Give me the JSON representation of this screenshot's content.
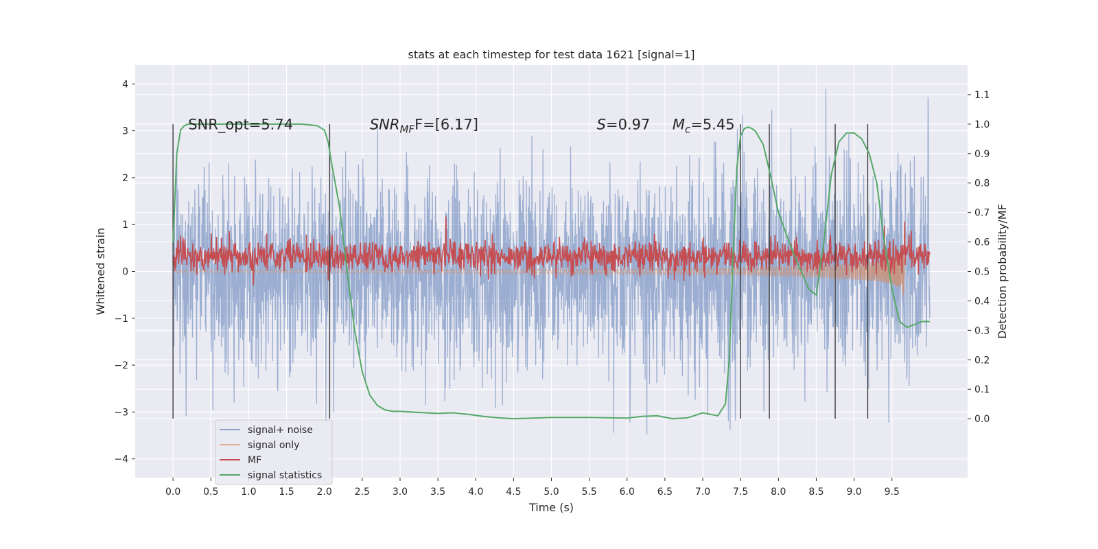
{
  "chart_data": {
    "type": "line",
    "title": "stats at each timestep for test data 1621 [signal=1]",
    "xlabel": "Time (s)",
    "ylabel_left": "Whitened strain",
    "ylabel_right": "Detection probability/MF",
    "xlim": [
      -0.5,
      10.5
    ],
    "ylim_left": [
      -4.4,
      4.4
    ],
    "ylim_right": [
      -0.2,
      1.2
    ],
    "x_ticks": [
      0.0,
      0.5,
      1.0,
      1.5,
      2.0,
      2.5,
      3.0,
      3.5,
      4.0,
      4.5,
      5.0,
      5.5,
      6.0,
      6.5,
      7.0,
      7.5,
      8.0,
      8.5,
      9.0,
      9.5
    ],
    "x_tick_labels": [
      "0.0",
      "0.5",
      "1.0",
      "1.5",
      "2.0",
      "2.5",
      "3.0",
      "3.5",
      "4.0",
      "4.5",
      "5.0",
      "5.5",
      "6.0",
      "6.5",
      "7.0",
      "7.5",
      "8.0",
      "8.5",
      "9.0",
      "9.5"
    ],
    "y_left_ticks": [
      -4,
      -3,
      -2,
      -1,
      0,
      1,
      2,
      3,
      4
    ],
    "y_left_tick_labels": [
      "−4",
      "−3",
      "−2",
      "−1",
      "0",
      "1",
      "2",
      "3",
      "4"
    ],
    "y_right_ticks": [
      0.0,
      0.1,
      0.2,
      0.3,
      0.4,
      0.5,
      0.6,
      0.7,
      0.8,
      0.9,
      1.0,
      1.1
    ],
    "y_right_tick_labels": [
      "0.0",
      "0.1",
      "0.2",
      "0.3",
      "0.4",
      "0.5",
      "0.6",
      "0.7",
      "0.8",
      "0.9",
      "1.0",
      "1.1"
    ],
    "grid": true,
    "legend": "lower-left",
    "series": [
      {
        "name": "signal+ noise",
        "color": "#4c72b0",
        "axis": "left",
        "x_range": [
          0,
          10
        ],
        "amplitude_range": [
          -4.0,
          3.95
        ]
      },
      {
        "name": "signal only",
        "color": "#dd8452",
        "axis": "left",
        "x_range": [
          0,
          9.67
        ],
        "envelope_t": [
          0,
          2,
          4,
          5,
          6,
          7,
          7.5,
          8,
          8.5,
          9,
          9.3,
          9.5,
          9.6,
          9.67
        ],
        "envelope_amp": [
          0.02,
          0.03,
          0.04,
          0.05,
          0.06,
          0.07,
          0.08,
          0.1,
          0.13,
          0.18,
          0.22,
          0.28,
          0.35,
          0.65
        ]
      },
      {
        "name": "MF",
        "color": "#c44e52",
        "axis": "right",
        "x_range": [
          0,
          10
        ],
        "base": 0.55,
        "spread": 0.05
      },
      {
        "name": "signal statistics",
        "color": "#55a868",
        "axis": "right",
        "x": [
          0.0,
          0.05,
          0.1,
          0.15,
          0.2,
          0.3,
          0.5,
          1.0,
          1.5,
          1.7,
          1.9,
          2.0,
          2.05,
          2.1,
          2.2,
          2.3,
          2.4,
          2.5,
          2.6,
          2.7,
          2.8,
          2.9,
          3.0,
          3.2,
          3.5,
          3.7,
          3.9,
          4.1,
          4.3,
          4.5,
          5.0,
          5.5,
          6.0,
          6.2,
          6.4,
          6.6,
          6.8,
          7.0,
          7.2,
          7.3,
          7.35,
          7.4,
          7.45,
          7.5,
          7.55,
          7.6,
          7.65,
          7.7,
          7.8,
          7.9,
          8.0,
          8.2,
          8.4,
          8.5,
          8.6,
          8.7,
          8.8,
          8.9,
          9.0,
          9.1,
          9.2,
          9.3,
          9.4,
          9.5,
          9.6,
          9.7,
          9.8,
          9.9,
          10.0
        ],
        "y": [
          0.6,
          0.9,
          0.98,
          0.995,
          1.0,
          1.0,
          1.0,
          1.0,
          1.0,
          1.0,
          0.995,
          0.98,
          0.94,
          0.86,
          0.72,
          0.5,
          0.3,
          0.16,
          0.08,
          0.045,
          0.03,
          0.025,
          0.025,
          0.022,
          0.018,
          0.02,
          0.015,
          0.008,
          0.003,
          0.0,
          0.004,
          0.004,
          0.002,
          0.008,
          0.01,
          0.0,
          0.003,
          0.02,
          0.01,
          0.05,
          0.2,
          0.55,
          0.85,
          0.96,
          0.985,
          0.99,
          0.985,
          0.975,
          0.93,
          0.82,
          0.7,
          0.56,
          0.44,
          0.42,
          0.6,
          0.83,
          0.94,
          0.97,
          0.97,
          0.95,
          0.9,
          0.8,
          0.6,
          0.44,
          0.33,
          0.31,
          0.32,
          0.33,
          0.33
        ]
      }
    ],
    "vertical_lines": [
      0.0,
      2.07,
      7.5,
      7.88,
      8.75,
      9.18
    ],
    "annotations": [
      {
        "text": "SNR_opt=5.74",
        "x": 0.2,
        "y": 3.03
      },
      {
        "text_pre": "SNR",
        "text_sub": "MF",
        "text_post": "F=[6.17]",
        "x": 2.6,
        "y": 3.03
      },
      {
        "text_pre": "S",
        "text_post": "=0.97",
        "x": 5.6,
        "y": 3.03
      },
      {
        "text_pre": "M",
        "text_sub": "c",
        "text_post": "=5.45",
        "x": 6.6,
        "y": 3.03
      }
    ]
  }
}
